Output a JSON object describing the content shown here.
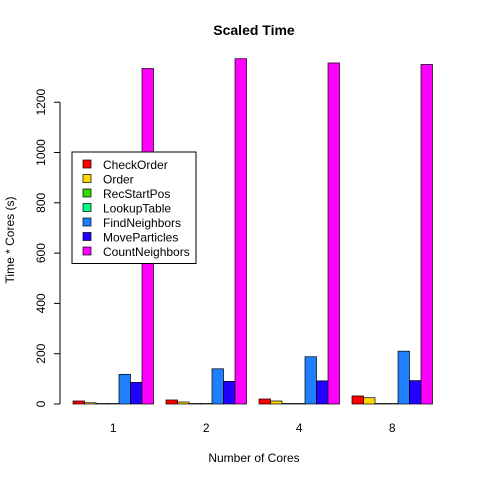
{
  "chart_data": {
    "type": "bar",
    "title": "Scaled Time",
    "xlabel": "Number of Cores",
    "ylabel": "Time * Cores (s)",
    "categories": [
      "1",
      "2",
      "4",
      "8"
    ],
    "ylim": [
      0,
      1370
    ],
    "yticks": [
      0,
      200,
      400,
      600,
      800,
      1000,
      1200
    ],
    "grid": false,
    "legend_position": "left",
    "series": [
      {
        "name": "CheckOrder",
        "color": "#ff0000",
        "values": [
          12,
          16,
          20,
          32
        ]
      },
      {
        "name": "Order",
        "color": "#ffd700",
        "values": [
          5,
          8,
          12,
          25
        ]
      },
      {
        "name": "RecStartPos",
        "color": "#33dd00",
        "values": [
          1,
          1,
          1,
          2
        ]
      },
      {
        "name": "LookupTable",
        "color": "#00ff7f",
        "values": [
          1,
          1,
          1,
          1
        ]
      },
      {
        "name": "FindNeighbors",
        "color": "#1e7fff",
        "values": [
          118,
          140,
          188,
          210
        ]
      },
      {
        "name": "MoveParticles",
        "color": "#2200ff",
        "values": [
          86,
          90,
          92,
          93
        ]
      },
      {
        "name": "CountNeighbors",
        "color": "#ff00ff",
        "values": [
          1334,
          1373,
          1356,
          1350
        ]
      }
    ]
  }
}
